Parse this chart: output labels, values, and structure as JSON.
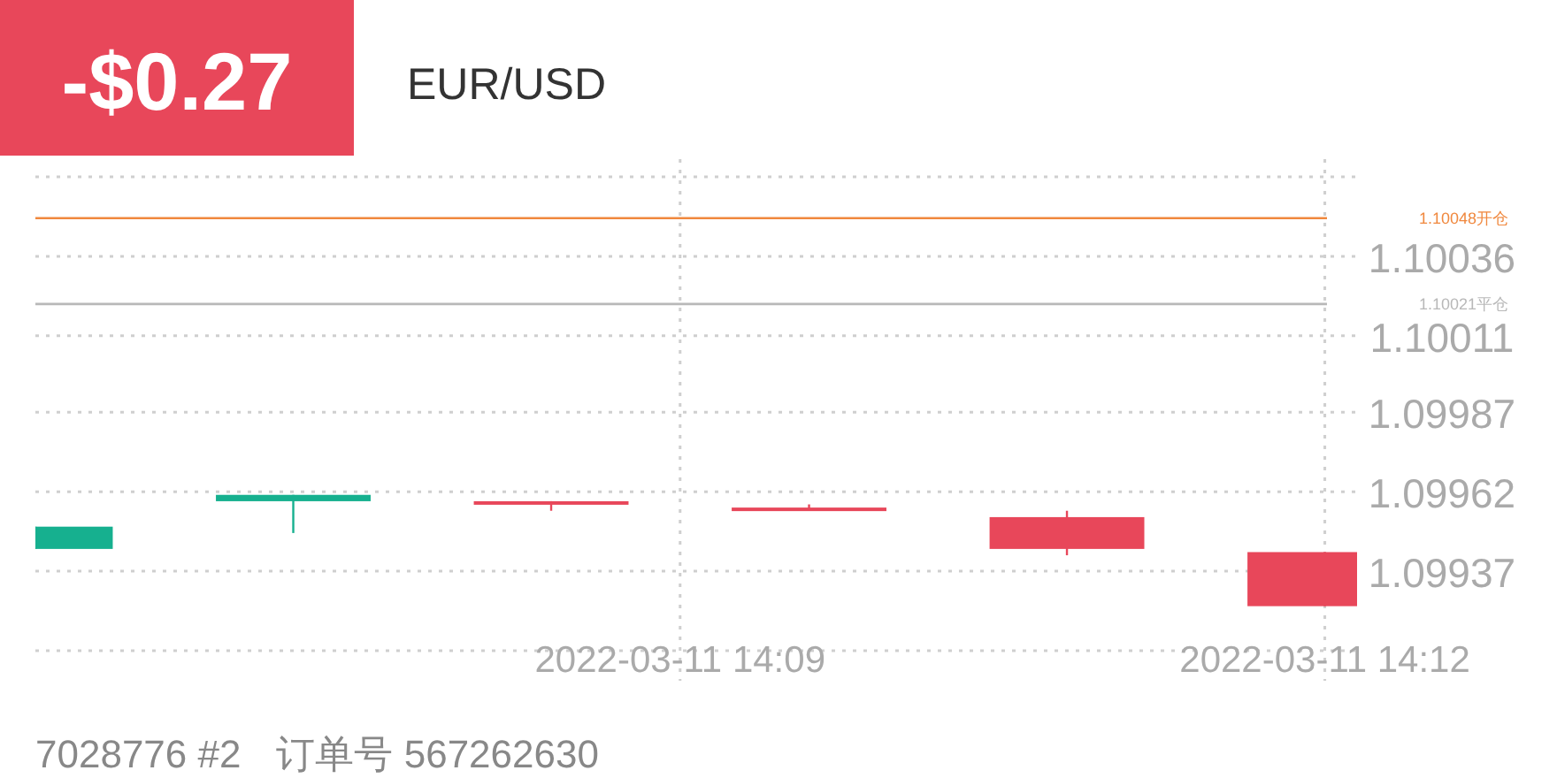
{
  "chart_data": {
    "type": "candlestick",
    "title": "EUR/USD",
    "annotations": [
      "-$0.27",
      "7028776 #2",
      "订单号 567262630"
    ],
    "x": [
      "2022-03-11T14:06:00",
      "2022-03-11T14:07:12",
      "2022-03-11T14:08:24",
      "2022-03-11T14:09:36",
      "2022-03-11T14:10:48",
      "2022-03-11T14:12:00"
    ],
    "ohlc": [
      [
        1.09944,
        1.09951,
        1.09944,
        1.09951
      ],
      [
        1.09959,
        1.09961,
        1.09949,
        1.09961
      ],
      [
        1.09959,
        1.09959,
        1.09956,
        1.09958
      ],
      [
        1.09957,
        1.09958,
        1.09956,
        1.09956
      ],
      [
        1.09954,
        1.09956,
        1.09942,
        1.09944
      ],
      [
        1.09943,
        1.09943,
        1.09926,
        1.09926
      ]
    ],
    "colors": [
      "#16b08f",
      "#16b08f",
      "#e8475a",
      "#e8475a",
      "#e8475a",
      "#e8475a"
    ],
    "xlim": [
      "2022-03-11T14:06:00",
      "2022-03-11T14:12:09"
    ],
    "xticks": [
      {
        "value": "2022-03-11T14:09",
        "label": "2022-03-11 14:09"
      },
      {
        "value": "2022-03-11T14:12",
        "label": "2022-03-11 14:12"
      }
    ],
    "ylim": [
      1.09912,
      1.10061
    ],
    "yticks": [
      {
        "value": 1.09912,
        "label": null
      },
      1.09937,
      1.09962,
      1.09987,
      1.10011,
      1.10036,
      {
        "value": 1.10061,
        "label": null
      }
    ],
    "ref_lines": [
      {
        "axis": "y",
        "value": 1.10048,
        "label": "1.10048开仓",
        "color": "#f0883e"
      },
      {
        "axis": "y",
        "value": 1.10021,
        "label": "1.10021平仓",
        "color": "#b8b8b8"
      }
    ],
    "grid": true
  }
}
